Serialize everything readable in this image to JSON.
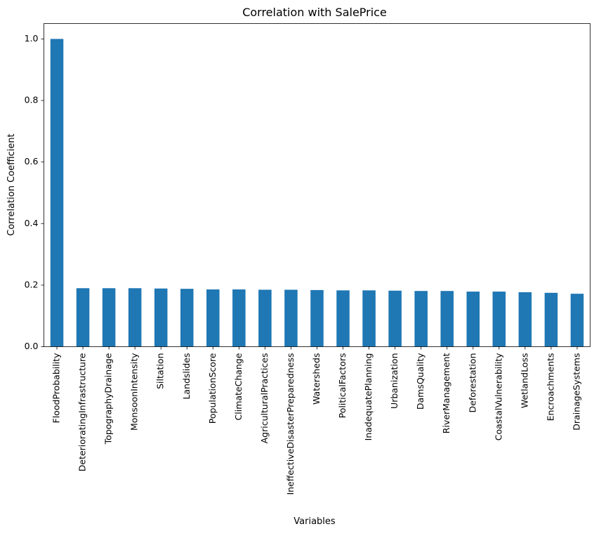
{
  "chart_data": {
    "type": "bar",
    "title": "Correlation with SalePrice",
    "xlabel": "Variables",
    "ylabel": "Correlation Coefficient",
    "ylim": [
      0,
      1.05
    ],
    "yticks": [
      "0.0",
      "0.2",
      "0.4",
      "0.6",
      "0.8",
      "1.0"
    ],
    "grid": false,
    "legend": "none",
    "bar_color": "#1f77b4",
    "categories": [
      "FloodProbability",
      "DeterioratingInfrastructure",
      "TopographyDrainage",
      "MonsoonIntensity",
      "Siltation",
      "Landslides",
      "PopulationScore",
      "ClimateChange",
      "AgriculturalPractices",
      "IneffectiveDisasterPreparedness",
      "Watersheds",
      "PoliticalFactors",
      "InadequatePlanning",
      "Urbanization",
      "DamsQuality",
      "RiverManagement",
      "Deforestation",
      "CoastalVulnerability",
      "WetlandLoss",
      "Encroachments",
      "DrainageSystems"
    ],
    "values": [
      1.0,
      0.19,
      0.19,
      0.19,
      0.189,
      0.188,
      0.186,
      0.186,
      0.185,
      0.185,
      0.184,
      0.183,
      0.183,
      0.182,
      0.181,
      0.181,
      0.179,
      0.179,
      0.177,
      0.175,
      0.172
    ]
  }
}
